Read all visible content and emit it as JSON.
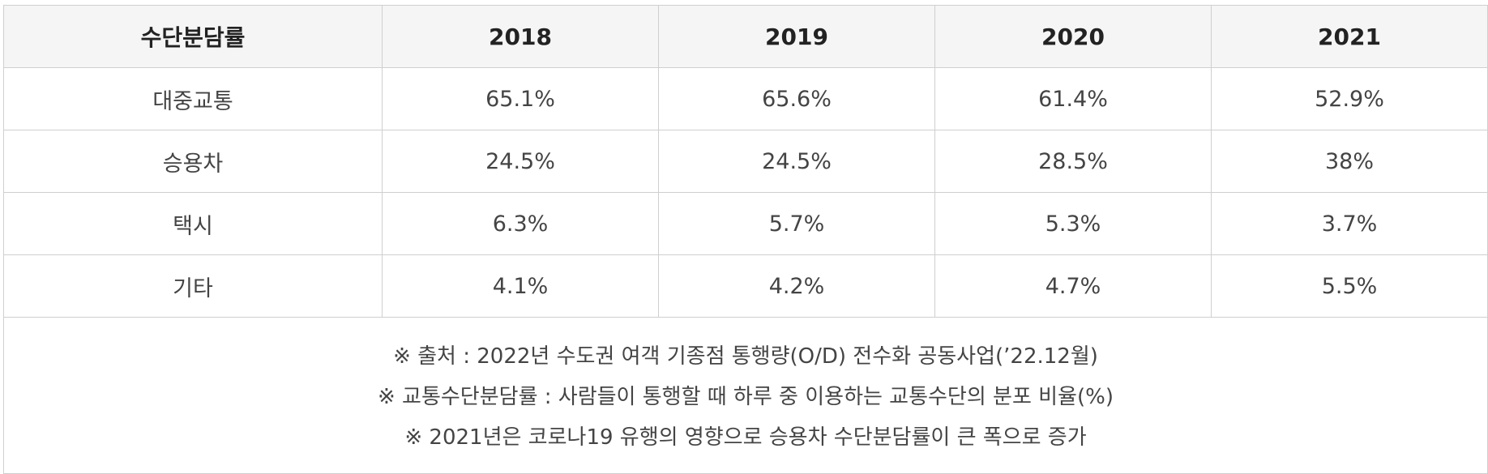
{
  "table": {
    "headers": [
      "수단분담률",
      "2018",
      "2019",
      "2020",
      "2021"
    ],
    "rows": [
      {
        "mode": "대중교통",
        "values": [
          "65.1%",
          "65.6%",
          "61.4%",
          "52.9%"
        ]
      },
      {
        "mode": "승용차",
        "values": [
          "24.5%",
          "24.5%",
          "28.5%",
          "38%"
        ]
      },
      {
        "mode": "택시",
        "values": [
          "6.3%",
          "5.7%",
          "5.3%",
          "3.7%"
        ]
      },
      {
        "mode": "기타",
        "values": [
          "4.1%",
          "4.2%",
          "4.7%",
          "5.5%"
        ]
      }
    ],
    "notes": [
      "※ 출처 : 2022년 수도권 여객 기종점 통행량(O/D) 전수화 공동사업(’22.12월)",
      "※ 교통수단분담률 : 사람들이 통행할 때 하루 중 이용하는 교통수단의 분포 비율(%)",
      "※ 2021년은 코로나19 유행의 영향으로 승용차 수단분담률이 큰 폭으로 증가"
    ]
  }
}
